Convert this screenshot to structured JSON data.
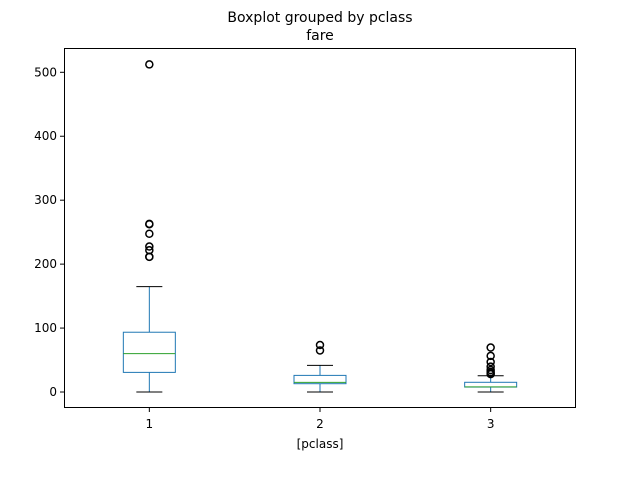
{
  "chart_data": {
    "type": "boxplot",
    "title": "Boxplot grouped by pclass",
    "subtitle": "fare",
    "xlabel": "[pclass]",
    "ylabel": "",
    "categories": [
      "1",
      "2",
      "3"
    ],
    "ylim": [
      -25,
      538
    ],
    "yticks": [
      0,
      100,
      200,
      300,
      400,
      500
    ],
    "grid": false,
    "colors": {
      "box": "#1f77b4",
      "median": "#2ca02c",
      "whisker_cap": "#000000",
      "flier": "#000000"
    },
    "boxes": [
      {
        "category": "1",
        "whisker_low": 0,
        "q1": 30.7,
        "median": 60.0,
        "q3": 93.5,
        "whisker_high": 164.9,
        "fliers": [
          211.3,
          211.5,
          221.8,
          227.5,
          247.5,
          262.4,
          263.0,
          512.3
        ]
      },
      {
        "category": "2",
        "whisker_low": 0,
        "q1": 13.0,
        "median": 15.05,
        "q3": 26.0,
        "whisker_high": 41.6,
        "fliers": [
          65.0,
          73.5
        ]
      },
      {
        "category": "3",
        "whisker_low": 0,
        "q1": 7.75,
        "median": 8.05,
        "q3": 15.2,
        "whisker_high": 25.5,
        "fliers": [
          27.9,
          29.1,
          31.3,
          34.4,
          39.7,
          46.9,
          56.5,
          69.6
        ]
      }
    ]
  }
}
